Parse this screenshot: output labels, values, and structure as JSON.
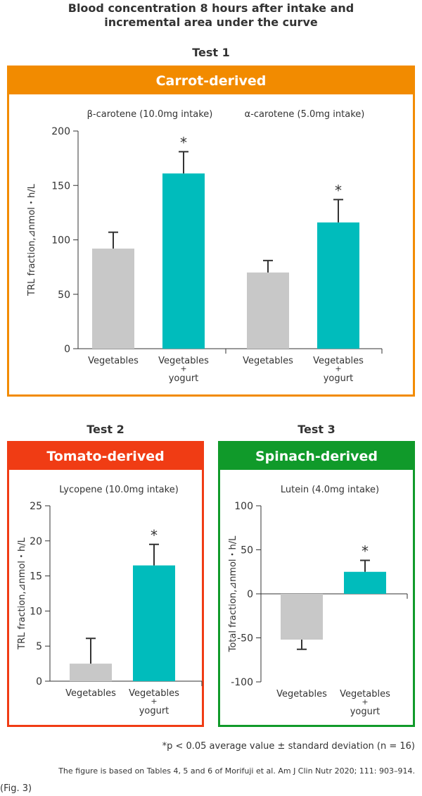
{
  "page": {
    "title_line1": "Blood concentration 8 hours after intake and",
    "title_line2": "incremental area under the curve",
    "test1_label": "Test 1",
    "test2_label": "Test 2",
    "test3_label": "Test 3",
    "footnote1": "*p < 0.05 average value ± standard deviation (n = 16)",
    "footnote2": "The figure is based on Tables 4, 5 and 6 of Morifuji et al. Am J Clin Nutr 2020; 111: 903–914.",
    "fig_label": "(Fig. 3)"
  },
  "colors": {
    "carrot": "#f28b00",
    "tomato": "#f03c14",
    "spinach": "#109a2a",
    "bar_vegetables": "#c8c8c8",
    "bar_yogurt": "#00bcbc",
    "axis": "#333333"
  },
  "chart_data": [
    {
      "type": "bar",
      "panel_title": "Carrot-derived",
      "ylabel": "TRL fraction,⊿nmol・h/L",
      "ylim": [
        0,
        200
      ],
      "yticks": [
        0,
        50,
        100,
        150,
        200
      ],
      "groups": [
        {
          "title": "β-carotene (10.0mg intake)",
          "bars": [
            {
              "category": "Vegetables",
              "category_line2": "",
              "value": 92,
              "error": 15,
              "significant": false
            },
            {
              "category": "Vegetables",
              "category_line2": "+",
              "category_line3": "yogurt",
              "value": 161,
              "error": 20,
              "significant": true
            }
          ]
        },
        {
          "title": "α-carotene (5.0mg intake)",
          "bars": [
            {
              "category": "Vegetables",
              "category_line2": "",
              "value": 70,
              "error": 11,
              "significant": false
            },
            {
              "category": "Vegetables",
              "category_line2": "+",
              "category_line3": "yogurt",
              "value": 116,
              "error": 21,
              "significant": true
            }
          ]
        }
      ]
    },
    {
      "type": "bar",
      "panel_title": "Tomato-derived",
      "ylabel": "TRL fraction,⊿nmol・h/L",
      "ylim": [
        0,
        25
      ],
      "yticks": [
        0,
        5,
        10,
        15,
        20,
        25
      ],
      "groups": [
        {
          "title": "Lycopene (10.0mg intake)",
          "bars": [
            {
              "category": "Vegetables",
              "category_line2": "",
              "value": 2.5,
              "error": 3.6,
              "significant": false
            },
            {
              "category": "Vegetables",
              "category_line2": "+",
              "category_line3": "yogurt",
              "value": 16.5,
              "error": 3.0,
              "significant": true
            }
          ]
        }
      ]
    },
    {
      "type": "bar",
      "panel_title": "Spinach-derived",
      "ylabel": "Total fraction,⊿nmol・h/L",
      "ylim": [
        -100,
        100
      ],
      "yticks": [
        -100,
        -50,
        0,
        50,
        100
      ],
      "groups": [
        {
          "title": "Lutein (4.0mg intake)",
          "bars": [
            {
              "category": "Vegetables",
              "category_line2": "",
              "value": -52,
              "error": 11,
              "significant": false
            },
            {
              "category": "Vegetables",
              "category_line2": "+",
              "category_line3": "yogurt",
              "value": 25,
              "error": 13,
              "significant": true
            }
          ]
        }
      ]
    }
  ]
}
